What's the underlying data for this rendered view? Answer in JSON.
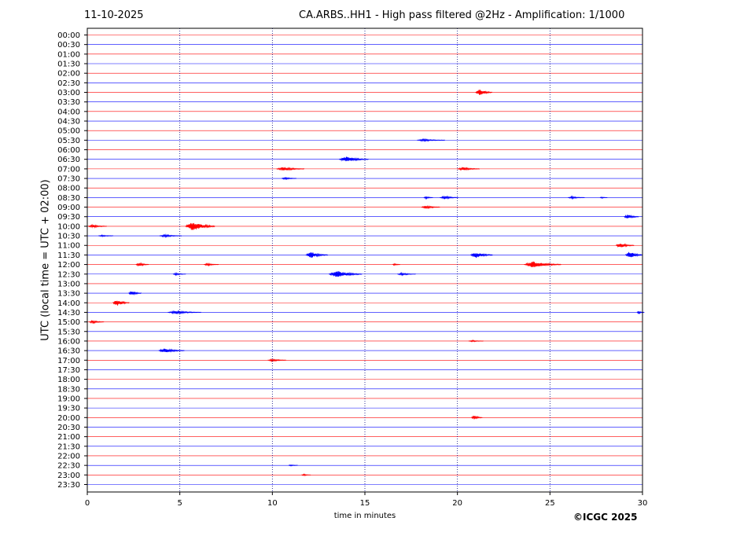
{
  "header": {
    "date": "11-10-2025",
    "title": "CA.ARBS..HH1 - High pass filtered @2Hz - Amplification: 1/1000"
  },
  "footer": {
    "copyright": "©ICGC 2025"
  },
  "colors": {
    "even_trace": "#ff0000",
    "odd_trace": "#0000ff",
    "grid": "#000080"
  },
  "chart_data": {
    "type": "line",
    "title": "CA.ARBS..HH1 - High pass filtered @2Hz - Amplification: 1/1000",
    "xlabel": "time in minutes",
    "ylabel": "UTC (local time = UTC + 02:00)",
    "xlim": [
      0,
      30
    ],
    "xticks": [
      0,
      5,
      10,
      15,
      20,
      25,
      30
    ],
    "grid": "vertical dotted at x ticks",
    "rows": [
      "00:00",
      "00:30",
      "01:00",
      "01:30",
      "02:00",
      "02:30",
      "03:00",
      "03:30",
      "04:00",
      "04:30",
      "05:00",
      "05:30",
      "06:00",
      "06:30",
      "07:00",
      "07:30",
      "08:00",
      "08:30",
      "09:00",
      "09:30",
      "10:00",
      "10:30",
      "11:00",
      "11:30",
      "12:00",
      "12:30",
      "13:00",
      "13:30",
      "14:00",
      "14:30",
      "15:00",
      "15:30",
      "16:00",
      "16:30",
      "17:00",
      "17:30",
      "18:00",
      "18:30",
      "19:00",
      "19:30",
      "20:00",
      "20:30",
      "21:00",
      "21:30",
      "22:00",
      "22:30",
      "23:00",
      "23:30"
    ],
    "events": [
      {
        "row": "03:00",
        "minute": 21.2,
        "amplitude": 4,
        "duration": 0.9
      },
      {
        "row": "05:30",
        "minute": 18.2,
        "amplitude": 1.5,
        "duration": 1.5
      },
      {
        "row": "06:30",
        "minute": 14.0,
        "amplitude": 3.5,
        "duration": 1.6
      },
      {
        "row": "07:00",
        "minute": 10.6,
        "amplitude": 2.5,
        "duration": 1.5
      },
      {
        "row": "07:00",
        "minute": 20.3,
        "amplitude": 2,
        "duration": 1.2
      },
      {
        "row": "07:30",
        "minute": 10.7,
        "amplitude": 1.5,
        "duration": 0.8
      },
      {
        "row": "08:30",
        "minute": 18.3,
        "amplitude": 1.5,
        "duration": 0.5
      },
      {
        "row": "08:30",
        "minute": 19.3,
        "amplitude": 2,
        "duration": 1.0
      },
      {
        "row": "08:30",
        "minute": 26.2,
        "amplitude": 1.5,
        "duration": 0.9
      },
      {
        "row": "08:30",
        "minute": 27.8,
        "amplitude": 1,
        "duration": 0.4
      },
      {
        "row": "09:00",
        "minute": 18.3,
        "amplitude": 2,
        "duration": 1.0
      },
      {
        "row": "09:30",
        "minute": 29.2,
        "amplitude": 3,
        "duration": 0.8
      },
      {
        "row": "10:00",
        "minute": 0.3,
        "amplitude": 2,
        "duration": 1.0
      },
      {
        "row": "10:00",
        "minute": 5.7,
        "amplitude": 6,
        "duration": 1.6
      },
      {
        "row": "10:30",
        "minute": 0.8,
        "amplitude": 1,
        "duration": 0.8
      },
      {
        "row": "10:30",
        "minute": 4.2,
        "amplitude": 1.5,
        "duration": 1.2
      },
      {
        "row": "11:00",
        "minute": 28.8,
        "amplitude": 3,
        "duration": 1.0
      },
      {
        "row": "11:30",
        "minute": 12.1,
        "amplitude": 4,
        "duration": 1.2
      },
      {
        "row": "11:30",
        "minute": 21.0,
        "amplitude": 4,
        "duration": 1.2
      },
      {
        "row": "11:30",
        "minute": 29.3,
        "amplitude": 5,
        "duration": 0.9
      },
      {
        "row": "12:00",
        "minute": 2.8,
        "amplitude": 2.5,
        "duration": 0.7
      },
      {
        "row": "12:00",
        "minute": 6.5,
        "amplitude": 1.5,
        "duration": 0.8
      },
      {
        "row": "12:00",
        "minute": 16.6,
        "amplitude": 1.5,
        "duration": 0.4
      },
      {
        "row": "12:00",
        "minute": 24.1,
        "amplitude": 4,
        "duration": 2.0
      },
      {
        "row": "12:30",
        "minute": 4.8,
        "amplitude": 1.5,
        "duration": 0.7
      },
      {
        "row": "12:30",
        "minute": 13.5,
        "amplitude": 4.5,
        "duration": 1.8
      },
      {
        "row": "12:30",
        "minute": 17.0,
        "amplitude": 1.5,
        "duration": 1.0
      },
      {
        "row": "13:30",
        "minute": 2.4,
        "amplitude": 3,
        "duration": 0.7
      },
      {
        "row": "14:00",
        "minute": 1.6,
        "amplitude": 4,
        "duration": 0.9
      },
      {
        "row": "14:30",
        "minute": 4.8,
        "amplitude": 2,
        "duration": 1.8
      },
      {
        "row": "14:30",
        "minute": 29.8,
        "amplitude": 2,
        "duration": 0.4
      },
      {
        "row": "15:00",
        "minute": 0.3,
        "amplitude": 2,
        "duration": 0.8
      },
      {
        "row": "16:00",
        "minute": 20.8,
        "amplitude": 1,
        "duration": 0.8
      },
      {
        "row": "16:30",
        "minute": 4.2,
        "amplitude": 3,
        "duration": 1.4
      },
      {
        "row": "17:00",
        "minute": 10.0,
        "amplitude": 1.5,
        "duration": 1.0
      },
      {
        "row": "20:00",
        "minute": 20.9,
        "amplitude": 2.5,
        "duration": 0.6
      },
      {
        "row": "22:30",
        "minute": 11.0,
        "amplitude": 1,
        "duration": 0.5
      },
      {
        "row": "23:00",
        "minute": 11.7,
        "amplitude": 1,
        "duration": 0.5
      }
    ]
  }
}
